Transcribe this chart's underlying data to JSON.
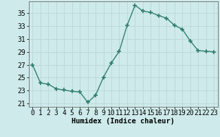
{
  "x": [
    0,
    1,
    2,
    3,
    4,
    5,
    6,
    7,
    8,
    9,
    10,
    11,
    12,
    13,
    14,
    15,
    16,
    17,
    18,
    19,
    20,
    21,
    22,
    23
  ],
  "y": [
    27,
    24.2,
    24.0,
    23.3,
    23.1,
    22.9,
    22.8,
    21.2,
    22.3,
    25.1,
    27.3,
    29.1,
    33.1,
    36.2,
    35.3,
    35.1,
    34.6,
    34.2,
    33.1,
    32.5,
    30.7,
    29.2,
    29.1,
    29.0
  ],
  "line_color": "#2e7d6e",
  "marker": "+",
  "marker_size": 4,
  "marker_lw": 1.2,
  "bg_color": "#ceeaea",
  "grid_color": "#b8d8d8",
  "xlabel": "Humidex (Indice chaleur)",
  "xlim": [
    -0.5,
    23.5
  ],
  "ylim": [
    20.5,
    36.8
  ],
  "yticks": [
    21,
    23,
    25,
    27,
    29,
    31,
    33,
    35
  ],
  "xticks": [
    0,
    1,
    2,
    3,
    4,
    5,
    6,
    7,
    8,
    9,
    10,
    11,
    12,
    13,
    14,
    15,
    16,
    17,
    18,
    19,
    20,
    21,
    22,
    23
  ],
  "xlabel_fontsize": 7.5,
  "tick_fontsize": 7,
  "line_width": 1.0
}
